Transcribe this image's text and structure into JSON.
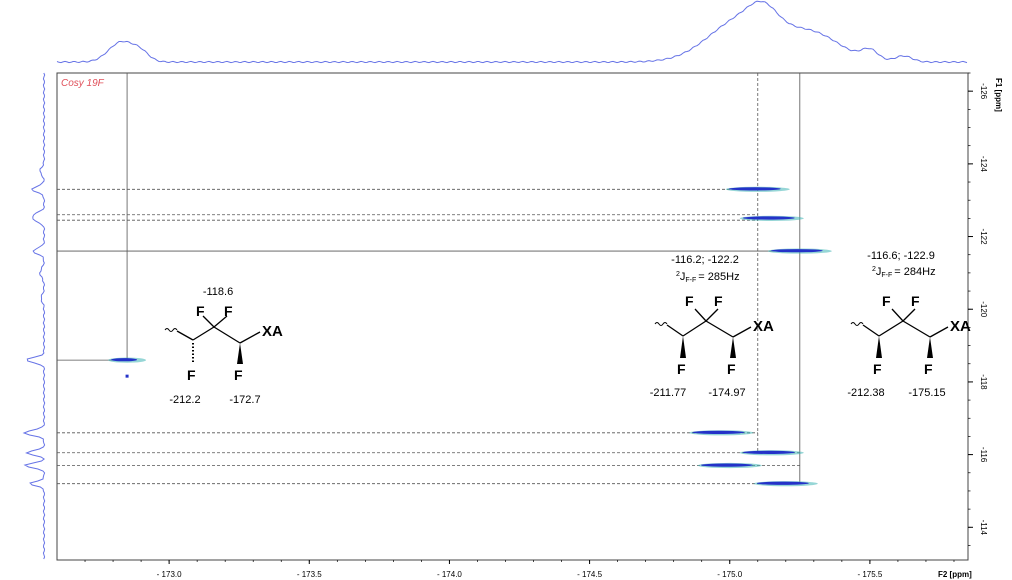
{
  "chart_data": {
    "type": "scatter",
    "title": "Cosy 19F",
    "xlabel": "F2 [ppm]",
    "ylabel": "F1 [ppm]",
    "xlim": [
      -172.6,
      -175.85
    ],
    "ylim": [
      -126.5,
      -113.1
    ],
    "x_ticks": [
      -173.0,
      -173.5,
      -174.0,
      -174.5,
      -175.0,
      -175.5
    ],
    "x_tick_labels": [
      "- 173.0",
      "- 173.5",
      "- 174.0",
      "- 174.5",
      "- 175.0",
      "- 175.5"
    ],
    "y_ticks": [
      -126,
      -124,
      -122,
      -120,
      -118,
      -116,
      -114
    ],
    "y_tick_labels": [
      "-126",
      "-124",
      "-122",
      "-120",
      "-118",
      "-116",
      "-114"
    ],
    "cross_peaks": [
      {
        "x": -172.85,
        "y": -118.6
      },
      {
        "x": -175.1,
        "y": -123.3
      },
      {
        "x": -175.15,
        "y": -122.5
      },
      {
        "x": -175.25,
        "y": -121.6
      },
      {
        "x": -174.97,
        "y": -116.6
      },
      {
        "x": -175.15,
        "y": -116.05
      },
      {
        "x": -175.0,
        "y": -115.7
      },
      {
        "x": -175.2,
        "y": -115.2
      }
    ],
    "guide_lines_y": [
      -123.3,
      -122.6,
      -122.45,
      -121.6,
      -118.6,
      -116.6,
      -116.05,
      -115.7,
      -115.2
    ],
    "guide_lines_x": [
      -172.85,
      -175.1,
      -175.25
    ],
    "annotations": [
      {
        "id": "mol1",
        "top": "-118.6",
        "bottom_left": "-212.2",
        "bottom_right": "-172.7"
      },
      {
        "id": "mol2",
        "top": "-116.2; -122.2",
        "coupling": "= 285Hz",
        "bottom_left": "-211.77",
        "bottom_right": "-174.97"
      },
      {
        "id": "mol3",
        "top": "-116.6; -122.9",
        "coupling": "= 284Hz",
        "bottom_left": "-212.38",
        "bottom_right": "-175.15"
      }
    ],
    "coupling_prefix": "2",
    "coupling_symbol": "J",
    "coupling_subscript": "F-F",
    "atom_label": "F",
    "substituent_label": "XA",
    "grid": false,
    "colors": {
      "projection": "#6673e6",
      "peak_main": "#2432c8",
      "peak_alt": "#40b4b4",
      "title": "#e0505a"
    }
  }
}
